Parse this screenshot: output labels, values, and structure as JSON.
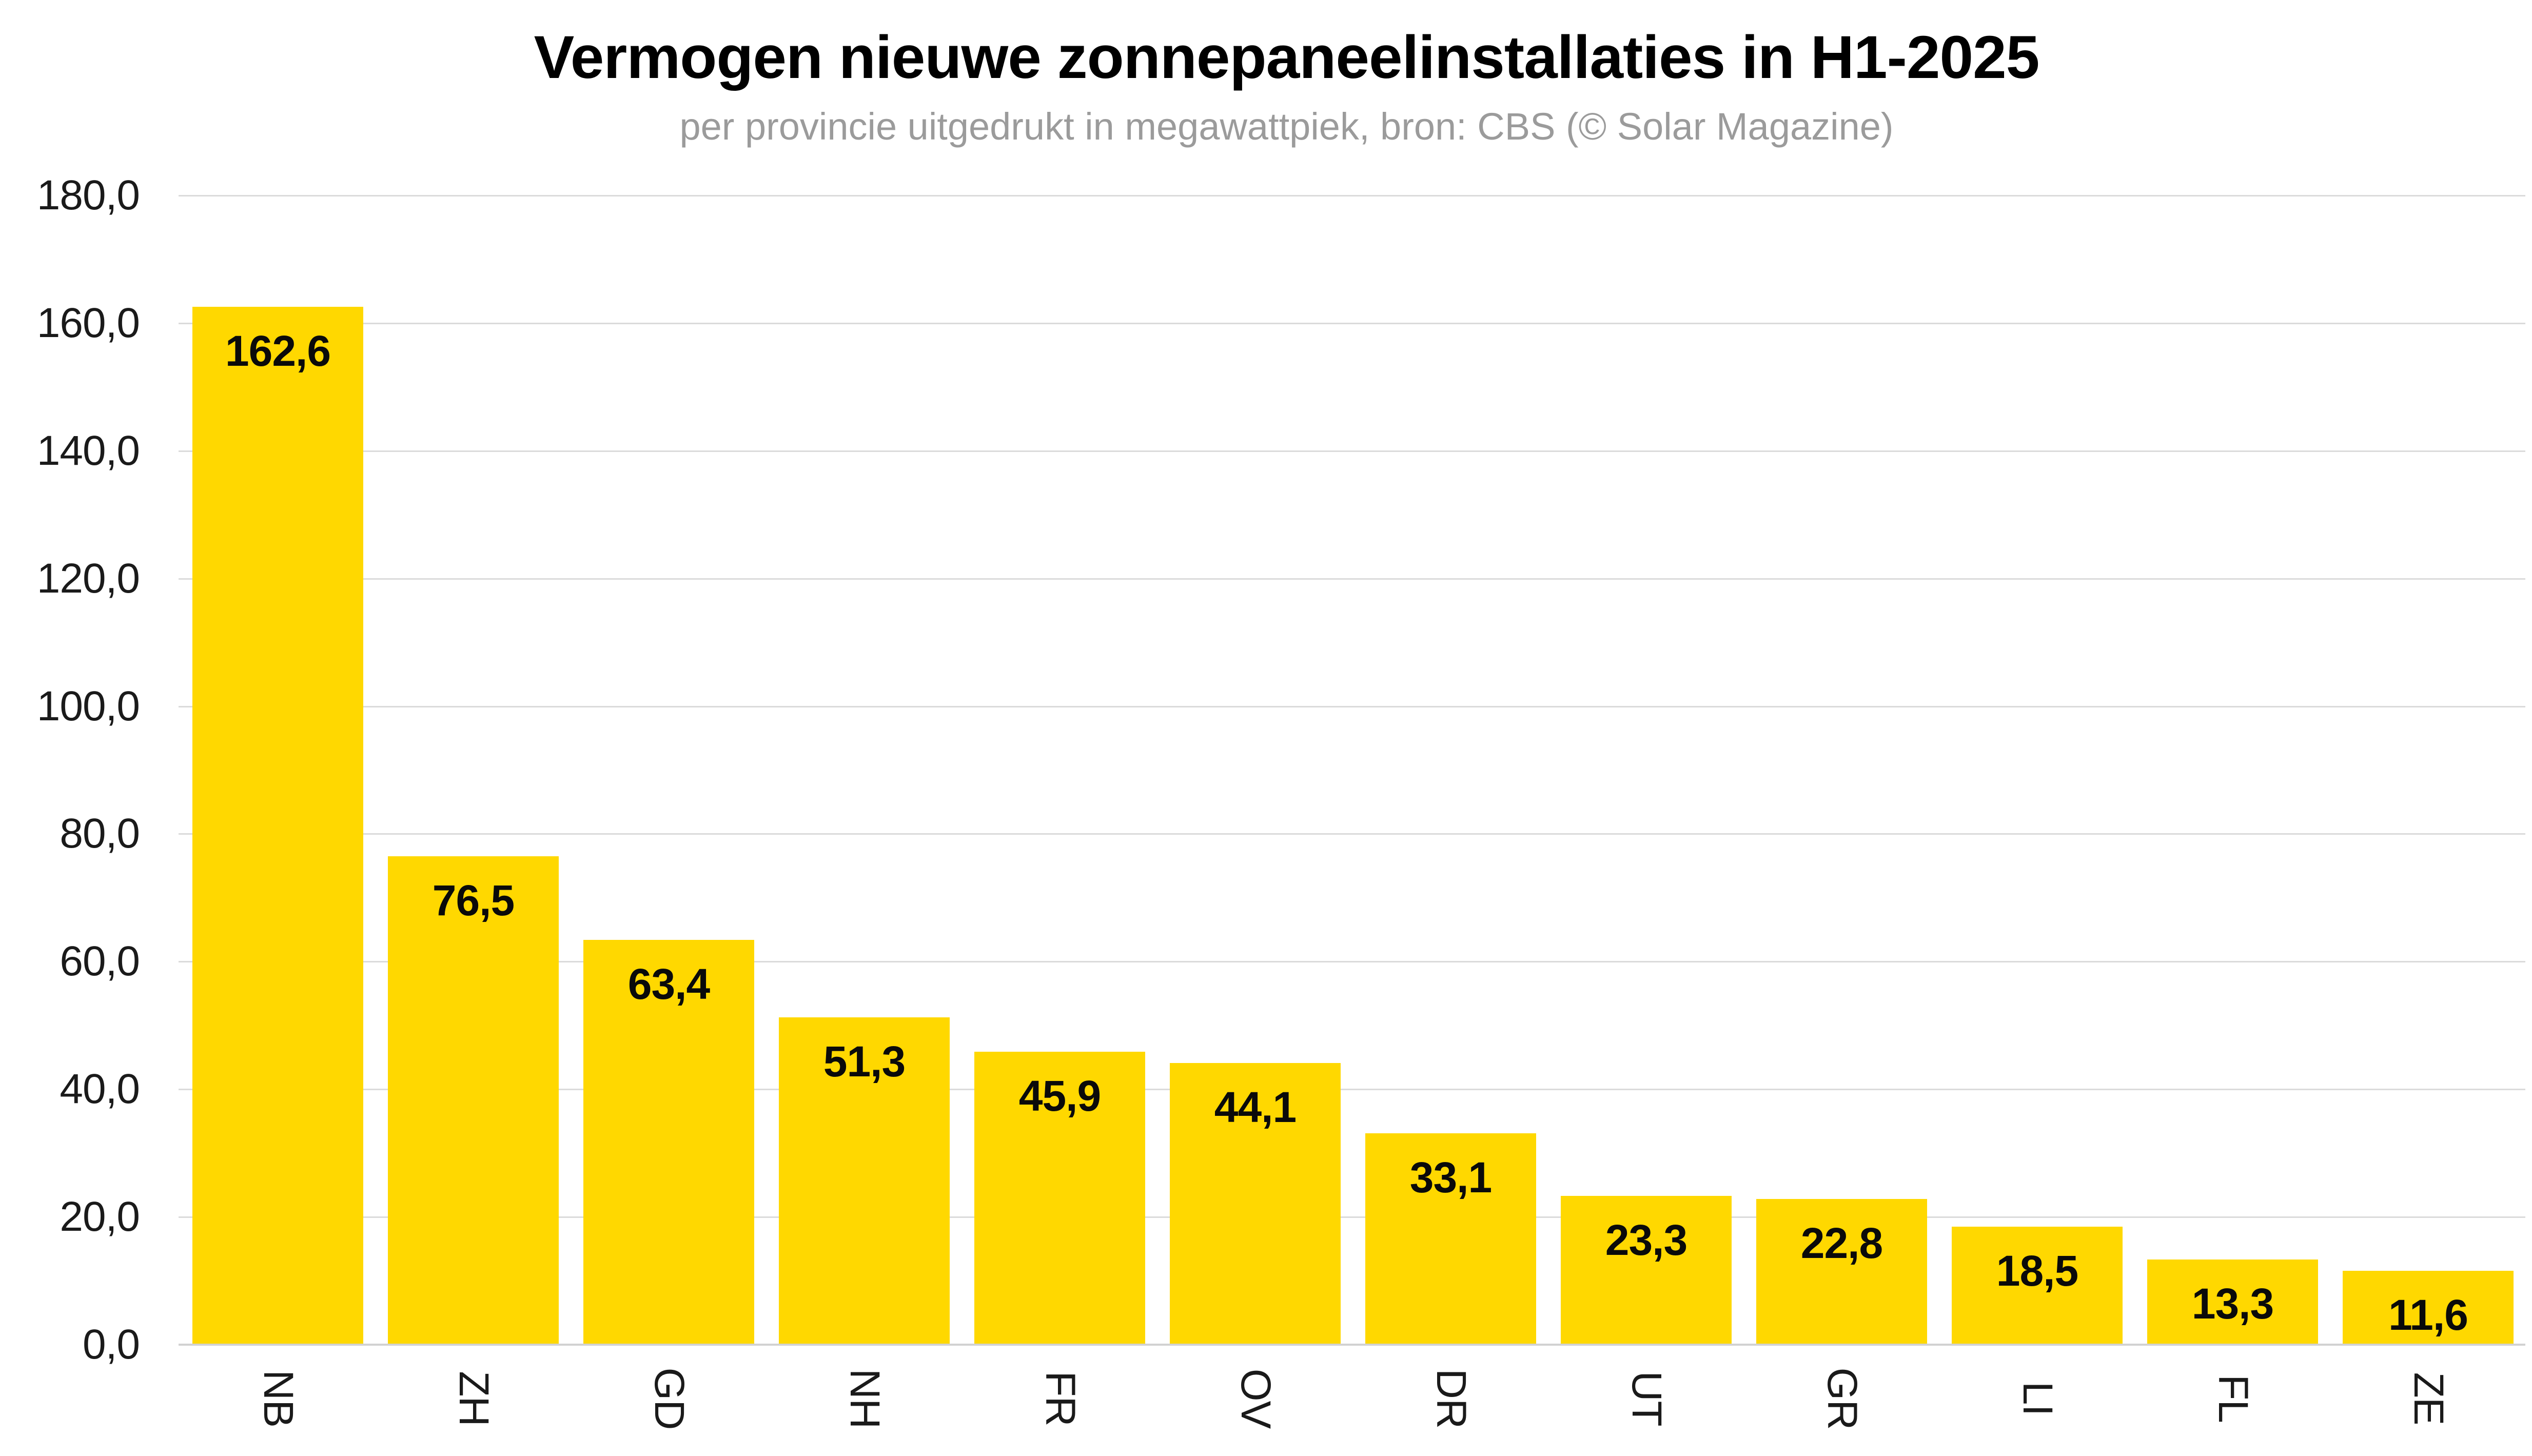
{
  "chart_data": {
    "type": "bar",
    "title": "Vermogen nieuwe zonnepaneelinstallaties in H1-2025",
    "subtitle": "per provincie uitgedrukt in megawattpiek, bron: CBS (© Solar Magazine)",
    "categories": [
      "NB",
      "ZH",
      "GD",
      "NH",
      "FR",
      "OV",
      "DR",
      "UT",
      "GR",
      "LI",
      "FL",
      "ZE"
    ],
    "values": [
      162.6,
      76.5,
      63.4,
      51.3,
      45.9,
      44.1,
      33.1,
      23.3,
      22.8,
      18.5,
      13.3,
      11.6
    ],
    "value_labels": [
      "162,6",
      "76,5",
      "63,4",
      "51,3",
      "45,9",
      "44,1",
      "33,1",
      "23,3",
      "22,8",
      "18,5",
      "13,3",
      "11,6"
    ],
    "xlabel": "",
    "ylabel": "",
    "ylim": [
      0,
      180
    ],
    "y_ticks": [
      0,
      20,
      40,
      60,
      80,
      100,
      120,
      140,
      160,
      180
    ],
    "y_tick_labels": [
      "0,0",
      "20,0",
      "40,0",
      "60,0",
      "80,0",
      "100,0",
      "120,0",
      "140,0",
      "160,0",
      "180,0"
    ],
    "grid": true,
    "legend_position": "none",
    "x_label_rotation_deg": 90
  },
  "colors": {
    "background": "#FFFFFF",
    "bar": "#FFD800",
    "gridline": "#DBDBDB",
    "baseline": "#D2D2D2",
    "title": "#000000",
    "subtitle": "#9B9B9B",
    "tick_label": "#1A1A1A",
    "value_label": "#0A0A0A"
  }
}
